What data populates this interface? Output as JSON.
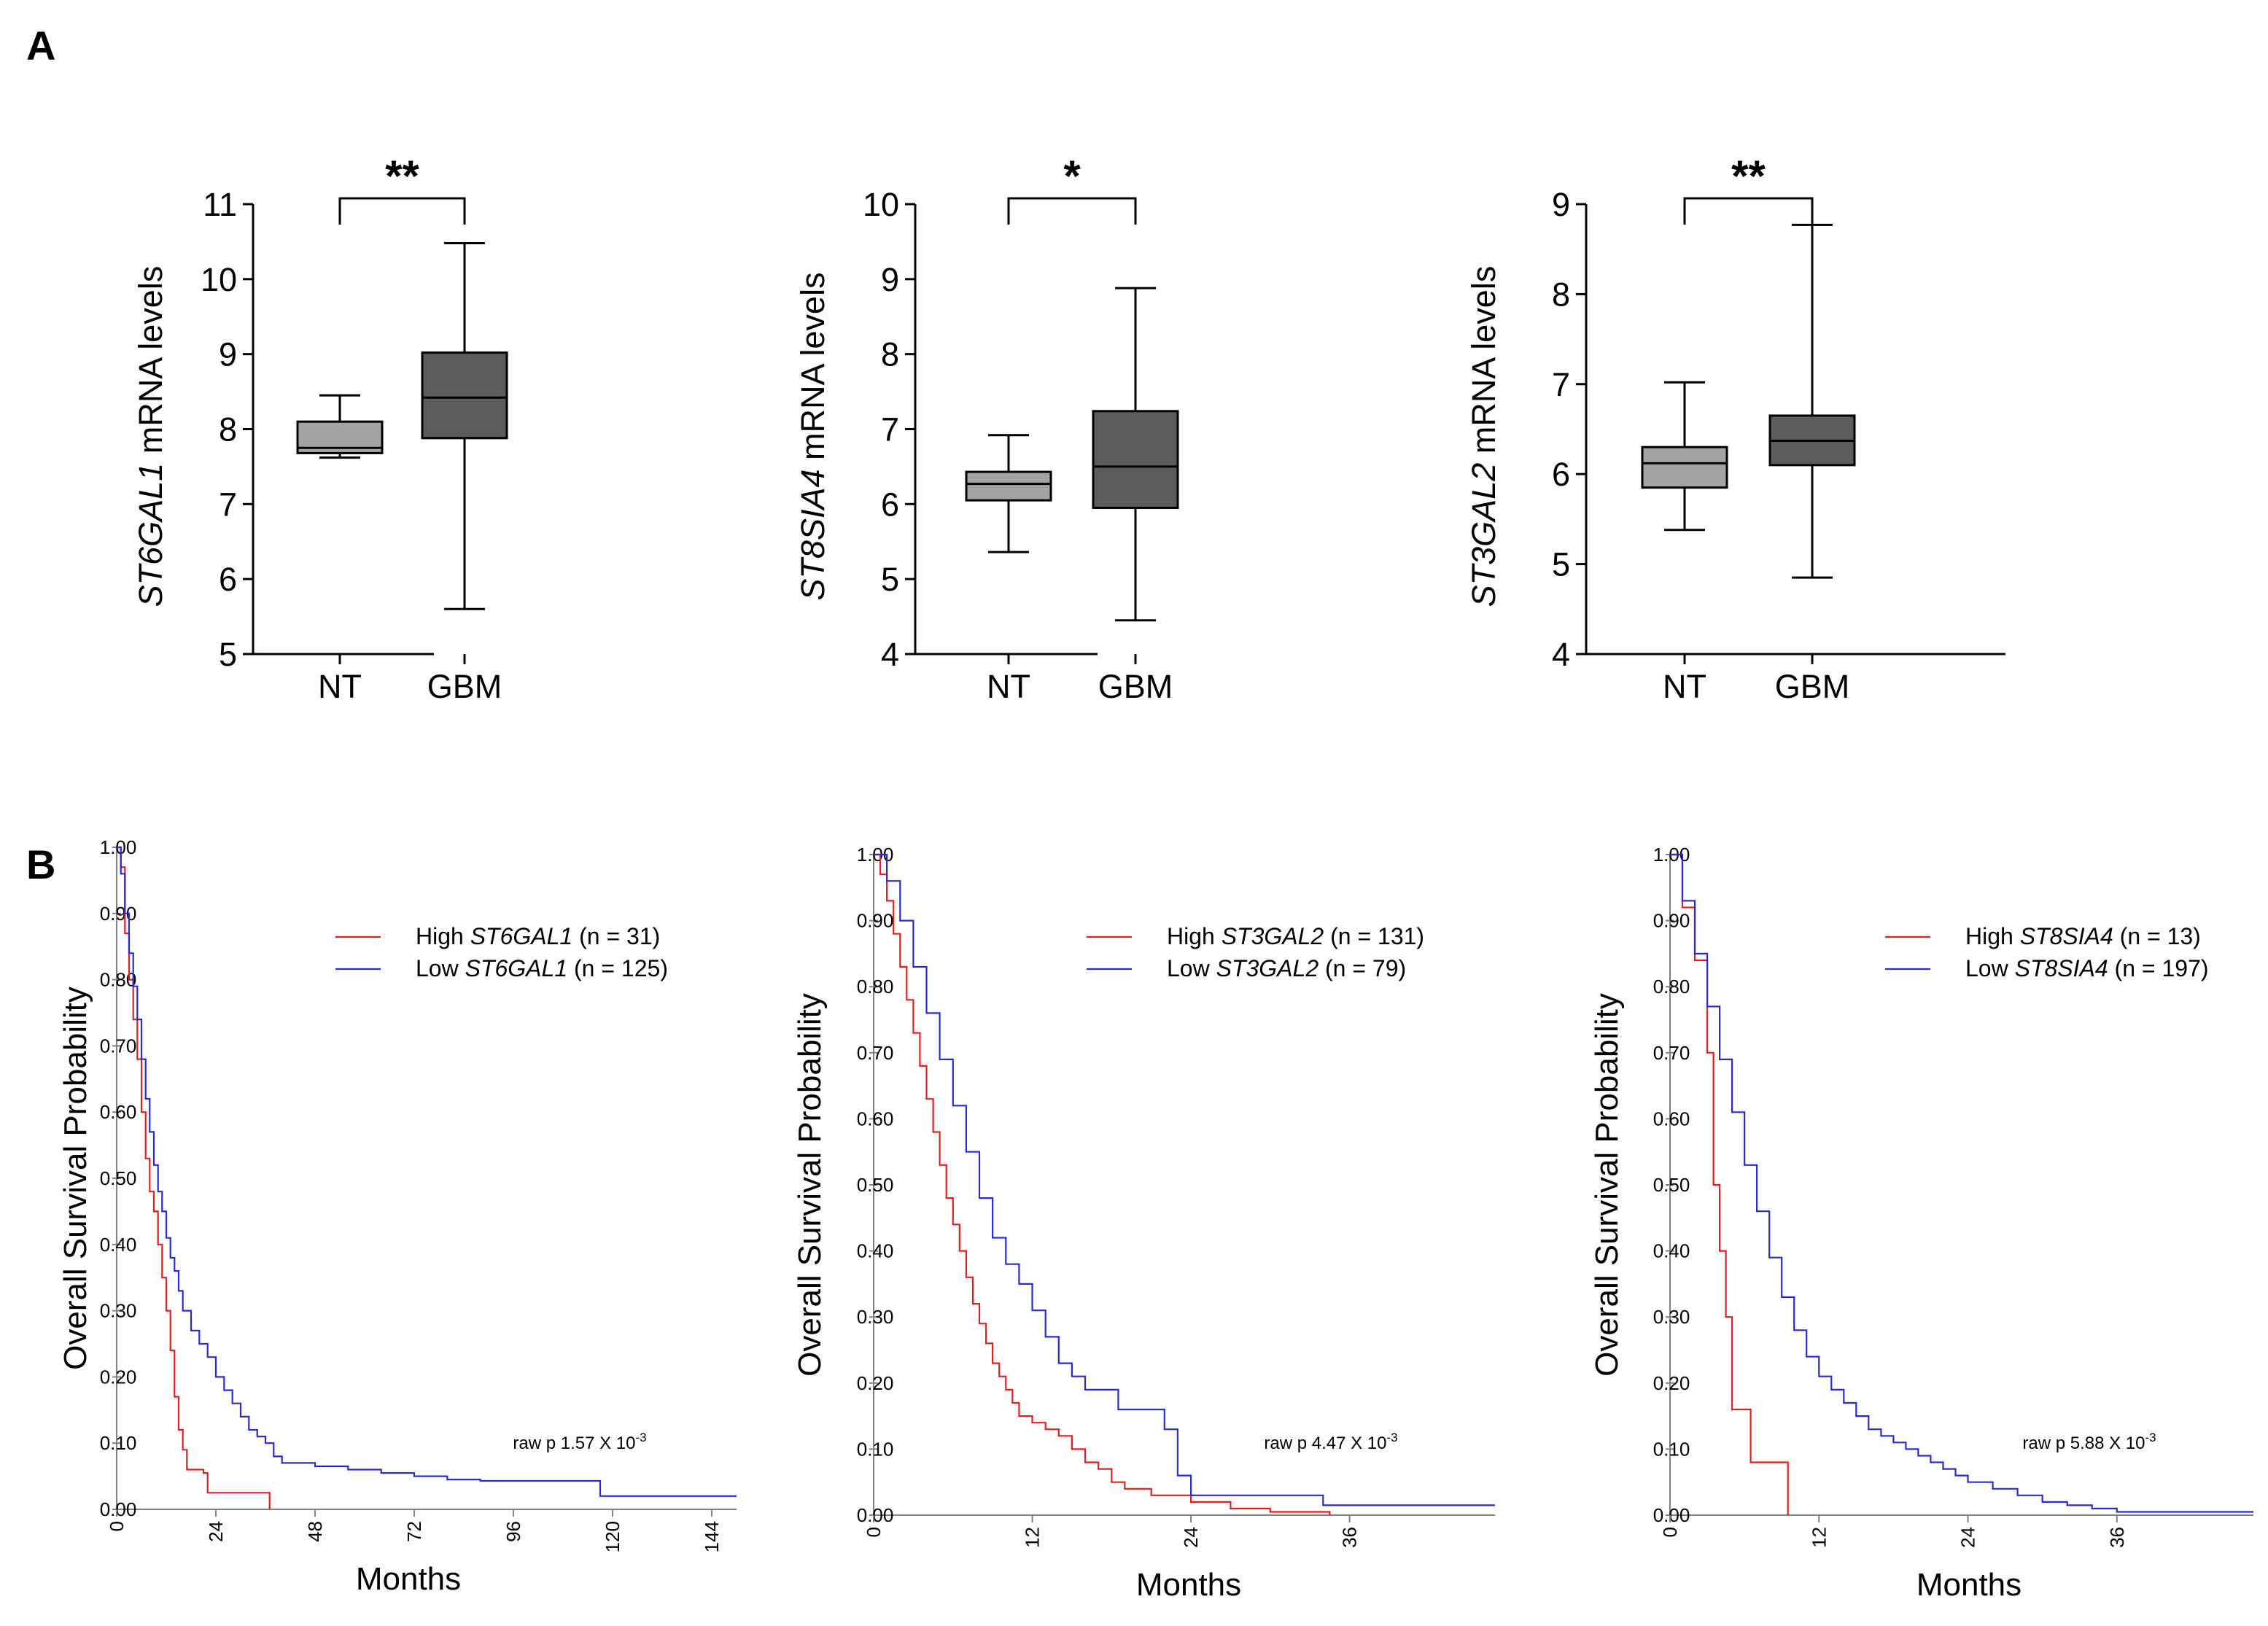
{
  "panels": {
    "a": "A",
    "b": "B"
  },
  "colors": {
    "nt_box": "#a3a3a3",
    "gbm_box": "#5c5c5c",
    "high": "#e02020",
    "low": "#2a2ad0",
    "axis": "#000000",
    "km_axis": "#808080"
  },
  "chart_data": [
    {
      "type": "box",
      "ylabel_gene": "ST6GAL1",
      "ylabel_rest": " mRNA levels",
      "categories": [
        "NT",
        "GBM"
      ],
      "ylim": [
        5,
        11
      ],
      "yticks": [
        "5",
        "6",
        "7",
        "8",
        "9",
        "10",
        "11"
      ],
      "boxes": [
        {
          "min": 7.62,
          "q1": 7.68,
          "median": 7.75,
          "q3": 8.1,
          "max": 8.45
        },
        {
          "min": 5.6,
          "q1": 7.88,
          "median": 8.42,
          "q3": 9.02,
          "max": 10.48
        }
      ],
      "significance": "**"
    },
    {
      "type": "box",
      "ylabel_gene": "ST8SIA4",
      "ylabel_rest": " mRNA levels",
      "categories": [
        "NT",
        "GBM"
      ],
      "ylim": [
        4,
        10
      ],
      "yticks": [
        "4",
        "5",
        "6",
        "7",
        "8",
        "9",
        "10"
      ],
      "boxes": [
        {
          "min": 5.36,
          "q1": 6.05,
          "median": 6.27,
          "q3": 6.43,
          "max": 6.92
        },
        {
          "min": 4.45,
          "q1": 5.95,
          "median": 6.5,
          "q3": 7.24,
          "max": 8.88
        }
      ],
      "significance": "*"
    },
    {
      "type": "box",
      "ylabel_gene": "ST3GAL2",
      "ylabel_rest": " mRNA levels",
      "categories": [
        "NT",
        "GBM"
      ],
      "ylim": [
        4,
        9
      ],
      "yticks": [
        "4",
        "5",
        "6",
        "7",
        "8",
        "9"
      ],
      "boxes": [
        {
          "min": 5.38,
          "q1": 5.85,
          "median": 6.12,
          "q3": 6.3,
          "max": 7.02
        },
        {
          "min": 4.85,
          "q1": 6.1,
          "median": 6.37,
          "q3": 6.65,
          "max": 8.77
        }
      ],
      "significance": "**"
    },
    {
      "type": "line",
      "subtype": "kaplan-meier",
      "ylabel": "Overall Survival Probability",
      "xlabel": "Months",
      "xlim": [
        0,
        150
      ],
      "ylim": [
        0,
        1
      ],
      "xticks": [
        0,
        24,
        48,
        72,
        96,
        120,
        144
      ],
      "yticks": [
        "0.00",
        "0.10",
        "0.20",
        "0.30",
        "0.40",
        "0.50",
        "0.60",
        "0.70",
        "0.80",
        "0.90",
        "1.00"
      ],
      "pvalue": {
        "label": "raw p  1.57 X 10",
        "exp": "-3"
      },
      "series": [
        {
          "name": "High",
          "gene": "ST6GAL1",
          "n": "(n = 31)",
          "points": [
            [
              0,
              1.0
            ],
            [
              1,
              0.97
            ],
            [
              2,
              0.87
            ],
            [
              3,
              0.8
            ],
            [
              4,
              0.74
            ],
            [
              5,
              0.68
            ],
            [
              6,
              0.6
            ],
            [
              7,
              0.53
            ],
            [
              8,
              0.48
            ],
            [
              9,
              0.45
            ],
            [
              10,
              0.4
            ],
            [
              11,
              0.35
            ],
            [
              12,
              0.3
            ],
            [
              13,
              0.24
            ],
            [
              14,
              0.17
            ],
            [
              15,
              0.12
            ],
            [
              16,
              0.09
            ],
            [
              17,
              0.06
            ],
            [
              19,
              0.06
            ],
            [
              21,
              0.055
            ],
            [
              22,
              0.025
            ],
            [
              36,
              0.025
            ],
            [
              37,
              0.0
            ]
          ]
        },
        {
          "name": "Low",
          "gene": "ST6GAL1",
          "n": "(n = 125)",
          "points": [
            [
              0,
              1.0
            ],
            [
              1,
              0.96
            ],
            [
              2,
              0.9
            ],
            [
              3,
              0.84
            ],
            [
              4,
              0.79
            ],
            [
              5,
              0.74
            ],
            [
              6,
              0.68
            ],
            [
              7,
              0.62
            ],
            [
              8,
              0.57
            ],
            [
              9,
              0.52
            ],
            [
              10,
              0.48
            ],
            [
              11,
              0.45
            ],
            [
              12,
              0.41
            ],
            [
              13,
              0.38
            ],
            [
              14,
              0.36
            ],
            [
              15,
              0.33
            ],
            [
              16,
              0.3
            ],
            [
              18,
              0.27
            ],
            [
              20,
              0.25
            ],
            [
              22,
              0.23
            ],
            [
              24,
              0.2
            ],
            [
              26,
              0.18
            ],
            [
              28,
              0.16
            ],
            [
              30,
              0.14
            ],
            [
              32,
              0.12
            ],
            [
              34,
              0.11
            ],
            [
              36,
              0.1
            ],
            [
              38,
              0.08
            ],
            [
              40,
              0.07
            ],
            [
              48,
              0.065
            ],
            [
              56,
              0.06
            ],
            [
              64,
              0.055
            ],
            [
              72,
              0.05
            ],
            [
              80,
              0.045
            ],
            [
              88,
              0.043
            ],
            [
              96,
              0.043
            ],
            [
              104,
              0.043
            ],
            [
              116,
              0.043
            ],
            [
              117,
              0.02
            ],
            [
              150,
              0.02
            ]
          ]
        }
      ]
    },
    {
      "type": "line",
      "subtype": "kaplan-meier",
      "ylabel": "Overall Survival Probability",
      "xlabel": "Months",
      "xlim": [
        0,
        47
      ],
      "ylim": [
        0,
        1
      ],
      "xticks": [
        0,
        12,
        24,
        36
      ],
      "yticks": [
        "0.00",
        "0.10",
        "0.20",
        "0.30",
        "0.40",
        "0.50",
        "0.60",
        "0.70",
        "0.80",
        "0.90",
        "1.00"
      ],
      "pvalue": {
        "label": "raw p  4.47 X 10",
        "exp": "-3"
      },
      "series": [
        {
          "name": "High",
          "gene": "ST3GAL2",
          "n": "(n = 131)",
          "points": [
            [
              0,
              1.0
            ],
            [
              0.5,
              0.97
            ],
            [
              1,
              0.93
            ],
            [
              1.5,
              0.88
            ],
            [
              2,
              0.83
            ],
            [
              2.5,
              0.78
            ],
            [
              3,
              0.73
            ],
            [
              3.5,
              0.68
            ],
            [
              4,
              0.63
            ],
            [
              4.5,
              0.58
            ],
            [
              5,
              0.53
            ],
            [
              5.5,
              0.48
            ],
            [
              6,
              0.44
            ],
            [
              6.5,
              0.4
            ],
            [
              7,
              0.36
            ],
            [
              7.5,
              0.32
            ],
            [
              8,
              0.29
            ],
            [
              8.5,
              0.26
            ],
            [
              9,
              0.23
            ],
            [
              9.5,
              0.21
            ],
            [
              10,
              0.19
            ],
            [
              10.5,
              0.17
            ],
            [
              11,
              0.15
            ],
            [
              12,
              0.14
            ],
            [
              13,
              0.13
            ],
            [
              14,
              0.12
            ],
            [
              15,
              0.1
            ],
            [
              16,
              0.08
            ],
            [
              17,
              0.07
            ],
            [
              18,
              0.05
            ],
            [
              19,
              0.04
            ],
            [
              21,
              0.03
            ],
            [
              24,
              0.02
            ],
            [
              27,
              0.01
            ],
            [
              30,
              0.005
            ],
            [
              34,
              0.005
            ],
            [
              34.5,
              0.0
            ]
          ]
        },
        {
          "name": "Low",
          "gene": "ST3GAL2",
          "n": "(n = 79)",
          "points": [
            [
              0,
              1.0
            ],
            [
              1,
              0.96
            ],
            [
              2,
              0.9
            ],
            [
              3,
              0.83
            ],
            [
              4,
              0.76
            ],
            [
              5,
              0.69
            ],
            [
              6,
              0.62
            ],
            [
              7,
              0.55
            ],
            [
              8,
              0.48
            ],
            [
              9,
              0.42
            ],
            [
              10,
              0.38
            ],
            [
              11,
              0.35
            ],
            [
              12,
              0.31
            ],
            [
              13,
              0.27
            ],
            [
              14,
              0.23
            ],
            [
              15,
              0.21
            ],
            [
              16,
              0.19
            ],
            [
              18,
              0.19
            ],
            [
              18.5,
              0.16
            ],
            [
              21,
              0.16
            ],
            [
              22,
              0.13
            ],
            [
              23,
              0.06
            ],
            [
              24,
              0.03
            ],
            [
              33,
              0.03
            ],
            [
              34,
              0.015
            ],
            [
              47,
              0.015
            ]
          ]
        }
      ]
    },
    {
      "type": "line",
      "subtype": "kaplan-meier",
      "ylabel": "Overall Survival Probability",
      "xlabel": "Months",
      "xlim": [
        0,
        47
      ],
      "ylim": [
        0,
        1
      ],
      "xticks": [
        0,
        12,
        24,
        36
      ],
      "yticks": [
        "0.00",
        "0.10",
        "0.20",
        "0.30",
        "0.40",
        "0.50",
        "0.60",
        "0.70",
        "0.80",
        "0.90",
        "1.00"
      ],
      "pvalue": {
        "label": "raw p  5.88 X 10",
        "exp": "-3"
      },
      "series": [
        {
          "name": "High",
          "gene": "ST8SIA4",
          "n": "(n = 13)",
          "points": [
            [
              0,
              1.0
            ],
            [
              1,
              0.92
            ],
            [
              2,
              0.84
            ],
            [
              3,
              0.7
            ],
            [
              3.5,
              0.5
            ],
            [
              4,
              0.4
            ],
            [
              4.5,
              0.3
            ],
            [
              5,
              0.16
            ],
            [
              6,
              0.16
            ],
            [
              6.5,
              0.08
            ],
            [
              9,
              0.08
            ],
            [
              9.5,
              0.0
            ]
          ]
        },
        {
          "name": "Low",
          "gene": "ST8SIA4",
          "n": "(n = 197)",
          "points": [
            [
              0,
              1.0
            ],
            [
              1,
              0.93
            ],
            [
              2,
              0.85
            ],
            [
              3,
              0.77
            ],
            [
              4,
              0.69
            ],
            [
              5,
              0.61
            ],
            [
              6,
              0.53
            ],
            [
              7,
              0.46
            ],
            [
              8,
              0.39
            ],
            [
              9,
              0.33
            ],
            [
              10,
              0.28
            ],
            [
              11,
              0.24
            ],
            [
              12,
              0.21
            ],
            [
              13,
              0.19
            ],
            [
              14,
              0.17
            ],
            [
              15,
              0.15
            ],
            [
              16,
              0.13
            ],
            [
              17,
              0.12
            ],
            [
              18,
              0.11
            ],
            [
              19,
              0.1
            ],
            [
              20,
              0.09
            ],
            [
              21,
              0.08
            ],
            [
              22,
              0.07
            ],
            [
              23,
              0.06
            ],
            [
              24,
              0.05
            ],
            [
              26,
              0.04
            ],
            [
              28,
              0.03
            ],
            [
              30,
              0.02
            ],
            [
              32,
              0.015
            ],
            [
              34,
              0.01
            ],
            [
              36,
              0.005
            ],
            [
              47,
              0.005
            ]
          ]
        }
      ]
    }
  ]
}
